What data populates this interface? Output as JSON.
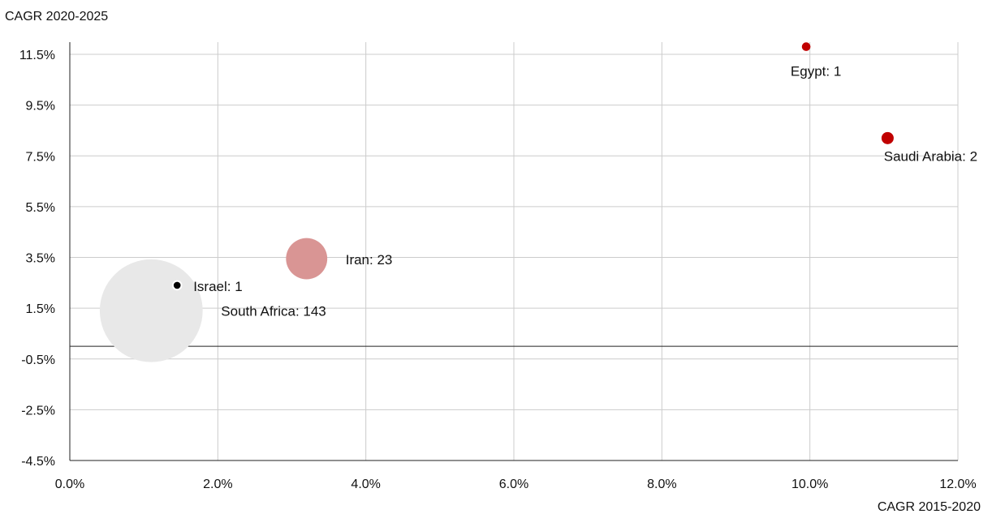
{
  "chart_data": {
    "type": "scatter",
    "xlabel": "CAGR 2015-2020",
    "ylabel": "CAGR 2020-2025",
    "xlim": [
      0,
      12
    ],
    "ylim": [
      -4.5,
      11.5
    ],
    "x_ticks": [
      {
        "value": 0,
        "label": "0.0%"
      },
      {
        "value": 2,
        "label": "2.0%"
      },
      {
        "value": 4,
        "label": "4.0%"
      },
      {
        "value": 6,
        "label": "6.0%"
      },
      {
        "value": 8,
        "label": "8.0%"
      },
      {
        "value": 10,
        "label": "10.0%"
      },
      {
        "value": 12,
        "label": "12.0%"
      }
    ],
    "y_ticks": [
      {
        "value": 11.5,
        "label": "11.5%"
      },
      {
        "value": 9.5,
        "label": "9.5%"
      },
      {
        "value": 7.5,
        "label": "7.5%"
      },
      {
        "value": 5.5,
        "label": "5.5%"
      },
      {
        "value": 3.5,
        "label": "3.5%"
      },
      {
        "value": 1.5,
        "label": "1.5%"
      },
      {
        "value": -0.5,
        "label": "-0.5%"
      },
      {
        "value": -2.5,
        "label": "-2.5%"
      },
      {
        "value": -4.5,
        "label": "-4.5%"
      }
    ],
    "grid": "vertical and horizontal",
    "colors": {
      "dark_red": "#c00000",
      "light_red": "#d99594",
      "black": "#000000",
      "light_grey": "#e8e8e8"
    },
    "points": [
      {
        "name": "Egypt",
        "x": 9.95,
        "y": 11.8,
        "size": 1,
        "label": "Egypt: 1",
        "color": "#c00000"
      },
      {
        "name": "Saudi Arabia",
        "x": 11.05,
        "y": 8.2,
        "size": 2,
        "label": "Saudi Arabia: 2",
        "color": "#c00000"
      },
      {
        "name": "Iran",
        "x": 3.2,
        "y": 3.45,
        "size": 23,
        "label": "Iran: 23",
        "color": "#d99594"
      },
      {
        "name": "Israel",
        "x": 1.45,
        "y": 2.4,
        "size": 1,
        "label": "Israel: 1",
        "color": "#000000"
      },
      {
        "name": "South Africa",
        "x": 1.1,
        "y": 1.4,
        "size": 143,
        "label": "South Africa: 143",
        "color": "#e8e8e8"
      }
    ]
  }
}
